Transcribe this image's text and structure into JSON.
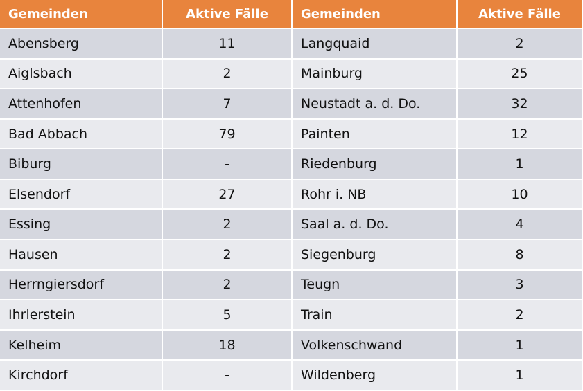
{
  "table": {
    "header": [
      "Gemeinden",
      "Aktive Fälle",
      "Gemeinden",
      "Aktive Fälle"
    ],
    "rows": [
      [
        "Abensberg",
        11,
        "Langquaid",
        2
      ],
      [
        "Aiglsbach",
        2,
        "Mainburg",
        25
      ],
      [
        "Attenhofen",
        7,
        "Neustadt a. d. Do.",
        32
      ],
      [
        "Bad Abbach",
        79,
        "Painten",
        12
      ],
      [
        "Biburg",
        "-",
        "Riedenburg",
        1
      ],
      [
        "Elsendorf",
        27,
        "Rohr i. NB",
        10
      ],
      [
        "Essing",
        2,
        "Saal a. d. Do.",
        4
      ],
      [
        "Hausen",
        2,
        "Siegenburg",
        8
      ],
      [
        "Herrngiersdorf",
        2,
        "Teugn",
        3
      ],
      [
        "Ihrlerstein",
        5,
        "Train",
        2
      ],
      [
        "Kelheim",
        18,
        "Volkenschwand",
        1
      ],
      [
        "Kirchdorf",
        "-",
        "Wildenberg",
        1
      ]
    ]
  }
}
